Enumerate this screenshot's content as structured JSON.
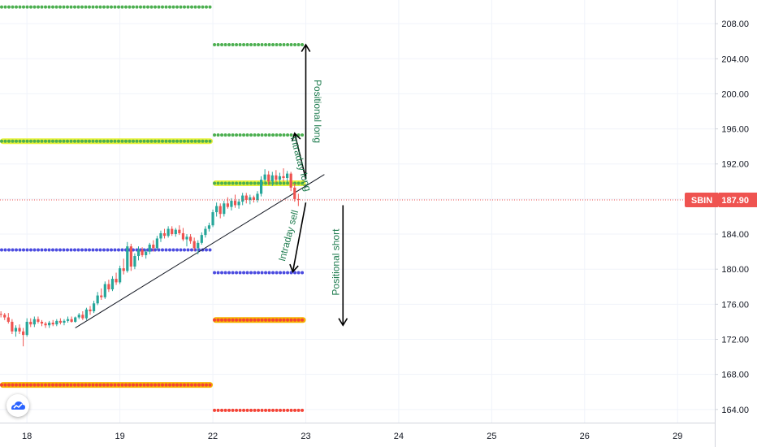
{
  "chart_data": {
    "type": "candlestick",
    "symbol": "SBIN",
    "last_price": "187.90",
    "y_ticks": [
      164.0,
      168.0,
      172.0,
      176.0,
      180.0,
      184.0,
      188.0,
      192.0,
      196.0,
      200.0,
      204.0,
      208.0
    ],
    "y_tick_labels": [
      "164.00",
      "168.00",
      "172.00",
      "176.00",
      "180.00",
      "184.00",
      "188.00",
      "192.00",
      "196.00",
      "200.00",
      "204.00",
      "208.00"
    ],
    "ylim": [
      162.5,
      210.7
    ],
    "x_ticks": [
      {
        "label": "18",
        "day": 0
      },
      {
        "label": "19",
        "day": 1
      },
      {
        "label": "22",
        "day": 2
      },
      {
        "label": "23",
        "day": 3
      },
      {
        "label": "24",
        "day": 4
      },
      {
        "label": "25",
        "day": 5
      },
      {
        "label": "26",
        "day": 6
      },
      {
        "label": "29",
        "day": 7
      }
    ],
    "xlim": [
      -0.29,
      7.4
    ],
    "dotted_levels": [
      {
        "name": "green-top",
        "start": -0.29,
        "end": 2.0,
        "price": 209.9,
        "color": "#4caf50",
        "glow": ""
      },
      {
        "name": "green-2055",
        "start": 2.0,
        "end": 3.0,
        "price": 205.6,
        "color": "#4caf50",
        "glow": ""
      },
      {
        "name": "lime-194",
        "start": -0.29,
        "end": 2.0,
        "price": 194.6,
        "color": "#4caf50",
        "glow": "#e7f23a"
      },
      {
        "name": "green-1953",
        "start": 2.0,
        "end": 3.0,
        "price": 195.3,
        "color": "#4caf50",
        "glow": ""
      },
      {
        "name": "lime-1898",
        "start": 2.0,
        "end": 3.0,
        "price": 189.8,
        "color": "#4caf50",
        "glow": "#e7f23a"
      },
      {
        "name": "blue-182",
        "start": -0.29,
        "end": 2.0,
        "price": 182.2,
        "color": "#4b4be0",
        "glow": ""
      },
      {
        "name": "blue-1795",
        "start": 2.0,
        "end": 3.0,
        "price": 179.6,
        "color": "#4b4be0",
        "glow": ""
      },
      {
        "name": "orange-1742",
        "start": 2.0,
        "end": 3.0,
        "price": 174.2,
        "color": "#f44336",
        "glow": "#f5b400"
      },
      {
        "name": "orange-1668",
        "start": -0.29,
        "end": 2.0,
        "price": 166.8,
        "color": "#f44336",
        "glow": "#f5b400"
      },
      {
        "name": "red-1639",
        "start": 2.0,
        "end": 3.0,
        "price": 163.9,
        "color": "#f44336",
        "glow": ""
      }
    ],
    "candles": [
      [
        -0.28,
        174.9,
        175.2,
        174.5,
        174.8
      ],
      [
        -0.24,
        174.8,
        175.0,
        174.2,
        174.5
      ],
      [
        -0.2,
        174.5,
        175.0,
        173.8,
        174.0
      ],
      [
        -0.16,
        174.0,
        174.3,
        172.6,
        172.9
      ],
      [
        -0.12,
        172.9,
        173.6,
        172.3,
        173.3
      ],
      [
        -0.08,
        173.3,
        173.7,
        172.6,
        172.9
      ],
      [
        -0.04,
        172.9,
        173.3,
        171.2,
        172.5
      ],
      [
        0.0,
        172.5,
        174.4,
        172.3,
        174.0
      ],
      [
        0.04,
        174.0,
        174.4,
        173.4,
        173.7
      ],
      [
        0.08,
        173.7,
        174.6,
        173.4,
        174.3
      ],
      [
        0.12,
        174.3,
        174.6,
        173.8,
        174.0
      ],
      [
        0.16,
        174.0,
        174.2,
        173.5,
        173.8
      ],
      [
        0.2,
        173.8,
        174.0,
        173.3,
        173.6
      ],
      [
        0.24,
        173.6,
        174.1,
        173.3,
        173.9
      ],
      [
        0.28,
        173.9,
        174.2,
        173.5,
        173.7
      ],
      [
        0.32,
        173.7,
        174.3,
        173.5,
        174.1
      ],
      [
        0.36,
        174.1,
        174.4,
        173.7,
        173.9
      ],
      [
        0.4,
        173.9,
        174.3,
        173.6,
        174.1
      ],
      [
        0.44,
        174.1,
        174.6,
        173.9,
        174.3
      ],
      [
        0.48,
        174.3,
        174.6,
        173.9,
        174.0
      ],
      [
        0.52,
        174.0,
        174.6,
        173.9,
        174.5
      ],
      [
        0.56,
        174.5,
        175.0,
        174.3,
        174.8
      ],
      [
        0.6,
        174.8,
        175.2,
        174.2,
        174.4
      ],
      [
        0.64,
        174.4,
        175.6,
        174.2,
        175.4
      ],
      [
        0.68,
        175.4,
        175.8,
        174.8,
        175.2
      ],
      [
        0.72,
        175.2,
        176.4,
        175.0,
        176.1
      ],
      [
        0.76,
        176.1,
        177.4,
        175.9,
        177.0
      ],
      [
        0.8,
        177.0,
        177.8,
        176.5,
        176.8
      ],
      [
        0.84,
        176.8,
        178.6,
        176.6,
        178.3
      ],
      [
        0.88,
        178.3,
        178.8,
        177.4,
        177.7
      ],
      [
        0.92,
        177.7,
        179.2,
        177.5,
        178.9
      ],
      [
        0.96,
        178.9,
        179.6,
        178.2,
        178.5
      ],
      [
        1.0,
        178.5,
        180.4,
        178.3,
        180.1
      ],
      [
        1.04,
        180.1,
        181.2,
        179.4,
        179.8
      ],
      [
        1.08,
        179.8,
        183.1,
        179.6,
        182.6
      ],
      [
        1.12,
        182.6,
        182.9,
        179.8,
        180.3
      ],
      [
        1.16,
        180.3,
        181.8,
        180.0,
        181.5
      ],
      [
        1.2,
        181.5,
        182.6,
        181.0,
        182.2
      ],
      [
        1.24,
        182.2,
        182.5,
        181.4,
        181.6
      ],
      [
        1.28,
        181.6,
        182.3,
        181.2,
        182.0
      ],
      [
        1.32,
        182.0,
        183.0,
        181.7,
        182.8
      ],
      [
        1.36,
        182.8,
        183.3,
        182.0,
        182.4
      ],
      [
        1.4,
        182.4,
        183.8,
        182.2,
        183.5
      ],
      [
        1.44,
        183.5,
        184.4,
        183.1,
        184.1
      ],
      [
        1.48,
        184.1,
        184.6,
        183.5,
        183.8
      ],
      [
        1.52,
        183.8,
        184.9,
        183.6,
        184.6
      ],
      [
        1.56,
        184.6,
        184.9,
        183.8,
        184.0
      ],
      [
        1.6,
        184.0,
        184.7,
        183.7,
        184.5
      ],
      [
        1.64,
        184.5,
        185.0,
        183.9,
        184.1
      ],
      [
        1.68,
        184.1,
        184.7,
        183.2,
        183.4
      ],
      [
        1.72,
        183.4,
        184.0,
        182.6,
        183.7
      ],
      [
        1.76,
        183.7,
        184.0,
        182.9,
        183.2
      ],
      [
        1.8,
        183.2,
        183.6,
        182.1,
        182.4
      ],
      [
        1.84,
        182.4,
        183.3,
        181.7,
        183.0
      ],
      [
        1.88,
        183.0,
        184.2,
        182.8,
        183.9
      ],
      [
        1.92,
        183.9,
        184.9,
        183.6,
        184.6
      ],
      [
        1.96,
        184.6,
        185.3,
        184.3,
        185.0
      ],
      [
        2.0,
        185.0,
        186.8,
        184.8,
        186.5
      ],
      [
        2.04,
        186.5,
        187.6,
        186.0,
        187.2
      ],
      [
        2.08,
        187.2,
        187.5,
        185.8,
        186.3
      ],
      [
        2.12,
        186.3,
        187.8,
        186.0,
        187.5
      ],
      [
        2.16,
        187.5,
        188.2,
        186.9,
        187.1
      ],
      [
        2.2,
        187.1,
        188.1,
        186.7,
        187.8
      ],
      [
        2.24,
        187.8,
        188.5,
        187.0,
        187.3
      ],
      [
        2.28,
        187.3,
        188.0,
        186.9,
        187.7
      ],
      [
        2.32,
        187.7,
        188.7,
        187.3,
        188.4
      ],
      [
        2.36,
        188.4,
        188.7,
        187.5,
        187.9
      ],
      [
        2.4,
        187.9,
        188.5,
        187.4,
        188.2
      ],
      [
        2.44,
        188.2,
        188.4,
        187.6,
        187.9
      ],
      [
        2.48,
        187.9,
        188.9,
        187.6,
        188.6
      ],
      [
        2.52,
        188.6,
        190.6,
        188.3,
        190.2
      ],
      [
        2.56,
        190.2,
        191.4,
        189.8,
        190.8
      ],
      [
        2.6,
        190.8,
        191.2,
        189.6,
        190.0
      ],
      [
        2.64,
        190.0,
        191.1,
        189.5,
        190.7
      ],
      [
        2.68,
        190.7,
        191.3,
        189.9,
        190.2
      ],
      [
        2.72,
        190.2,
        191.0,
        189.7,
        190.6
      ],
      [
        2.76,
        190.6,
        191.5,
        190.0,
        190.4
      ],
      [
        2.8,
        190.4,
        191.2,
        189.9,
        190.9
      ],
      [
        2.84,
        190.9,
        191.1,
        188.9,
        189.3
      ],
      [
        2.88,
        189.3,
        189.8,
        187.7,
        188.0
      ],
      [
        2.92,
        188.0,
        188.6,
        187.2,
        187.9
      ]
    ],
    "up_color": "#26a69a",
    "down_color": "#ef5350",
    "trendline": {
      "x1": 0.52,
      "y1": 173.3,
      "x2": 3.2,
      "y2": 190.8,
      "color": "#131722"
    },
    "arrows": [
      {
        "name": "positional-long-arrow",
        "x1": 3.0,
        "y1": 190.3,
        "x2": 3.0,
        "y2": 205.6
      },
      {
        "name": "intraday-long-arrow",
        "x1": 3.0,
        "y1": 190.3,
        "x2": 2.88,
        "y2": 195.5
      },
      {
        "name": "intraday-sell-arrow",
        "x1": 3.0,
        "y1": 187.6,
        "x2": 2.86,
        "y2": 179.7
      },
      {
        "name": "positional-short-arrow",
        "x1": 3.4,
        "y1": 187.3,
        "x2": 3.4,
        "y2": 173.6
      }
    ],
    "annotations": [
      {
        "name": "positional-long-label",
        "text": "Positional long",
        "x": 3.12,
        "y": 198.0,
        "rotate": 90
      },
      {
        "name": "intraday-long-label",
        "text": "Intraday long",
        "x": 2.94,
        "y": 192.0,
        "rotate": 75
      },
      {
        "name": "intraday-sell-label",
        "text": "Intraday sell",
        "x": 2.82,
        "y": 183.8,
        "rotate": -75
      },
      {
        "name": "positional-short-label",
        "text": "Positional short",
        "x": 3.33,
        "y": 180.8,
        "rotate": -90
      }
    ],
    "price_line_color": "#ef5350",
    "grid": true
  },
  "colors": {
    "grid": "#f0f3fa",
    "axis_border": "#d1d4dc",
    "annotation": "#1e7b4e",
    "logo": "#2962ff"
  },
  "icons": {
    "logo": "tradingview-cloud-icon"
  }
}
